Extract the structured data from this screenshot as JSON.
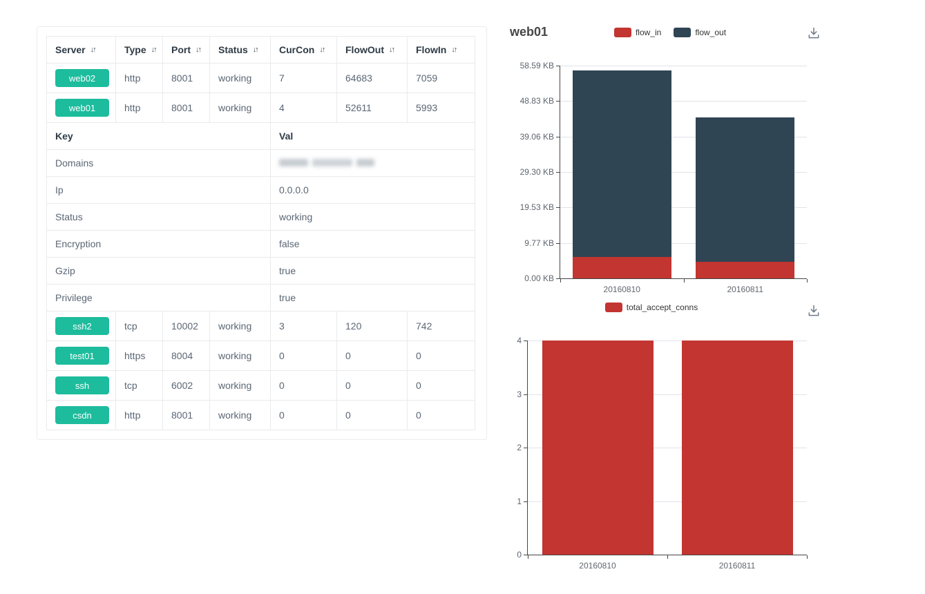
{
  "table": {
    "columns": [
      {
        "label": "Server"
      },
      {
        "label": "Type"
      },
      {
        "label": "Port"
      },
      {
        "label": "Status"
      },
      {
        "label": "CurCon"
      },
      {
        "label": "FlowOut"
      },
      {
        "label": "FlowIn"
      }
    ],
    "sort_icon": "↓↑",
    "badge_color": "#1dbc9d",
    "rows_top": [
      {
        "server": "web02",
        "type": "http",
        "port": "8001",
        "status": "working",
        "curcon": "7",
        "flowout": "64683",
        "flowin": "7059"
      },
      {
        "server": "web01",
        "type": "http",
        "port": "8001",
        "status": "working",
        "curcon": "4",
        "flowout": "52611",
        "flowin": "5993"
      }
    ],
    "detail": {
      "key_header": "Key",
      "val_header": "Val",
      "rows": [
        {
          "key": "Domains",
          "value": "",
          "redacted": true
        },
        {
          "key": "Ip",
          "value": "0.0.0.0"
        },
        {
          "key": "Status",
          "value": "working"
        },
        {
          "key": "Encryption",
          "value": "false"
        },
        {
          "key": "Gzip",
          "value": "true"
        },
        {
          "key": "Privilege",
          "value": "true"
        }
      ]
    },
    "rows_bottom": [
      {
        "server": "ssh2",
        "type": "tcp",
        "port": "10002",
        "status": "working",
        "curcon": "3",
        "flowout": "120",
        "flowin": "742"
      },
      {
        "server": "test01",
        "type": "https",
        "port": "8004",
        "status": "working",
        "curcon": "0",
        "flowout": "0",
        "flowin": "0"
      },
      {
        "server": "ssh",
        "type": "tcp",
        "port": "6002",
        "status": "working",
        "curcon": "0",
        "flowout": "0",
        "flowin": "0"
      },
      {
        "server": "csdn",
        "type": "http",
        "port": "8001",
        "status": "working",
        "curcon": "0",
        "flowout": "0",
        "flowin": "0"
      }
    ]
  },
  "chart_data": [
    {
      "type": "bar",
      "stacked": true,
      "title": "web01",
      "categories": [
        "20160810",
        "20160811"
      ],
      "series": [
        {
          "name": "flow_in",
          "color": "#c23531",
          "values": [
            5.85,
            4.5
          ]
        },
        {
          "name": "flow_out",
          "color": "#2f4554",
          "values": [
            51.4,
            39.8
          ]
        }
      ],
      "unit": "KB",
      "ylim": [
        0,
        58.59
      ],
      "ytick_values": [
        0,
        9.77,
        19.53,
        29.3,
        39.06,
        48.83,
        58.59
      ],
      "ytick_labels": [
        "0.00 KB",
        "9.77 KB",
        "19.53 KB",
        "29.30 KB",
        "39.06 KB",
        "48.83 KB",
        "58.59 KB"
      ],
      "xlabel": "",
      "ylabel": "",
      "grid": true,
      "legend_position": "top-center",
      "toolbox": [
        "save-as-image"
      ]
    },
    {
      "type": "bar",
      "stacked": false,
      "title": "",
      "categories": [
        "20160810",
        "20160811"
      ],
      "series": [
        {
          "name": "total_accept_conns",
          "color": "#c23531",
          "values": [
            4,
            4
          ]
        }
      ],
      "unit": "",
      "ylim": [
        0,
        4
      ],
      "ytick_values": [
        0,
        1,
        2,
        3,
        4
      ],
      "ytick_labels": [
        "0",
        "1",
        "2",
        "3",
        "4"
      ],
      "xlabel": "",
      "ylabel": "",
      "grid": true,
      "legend_position": "top-center",
      "toolbox": [
        "save-as-image"
      ]
    }
  ]
}
